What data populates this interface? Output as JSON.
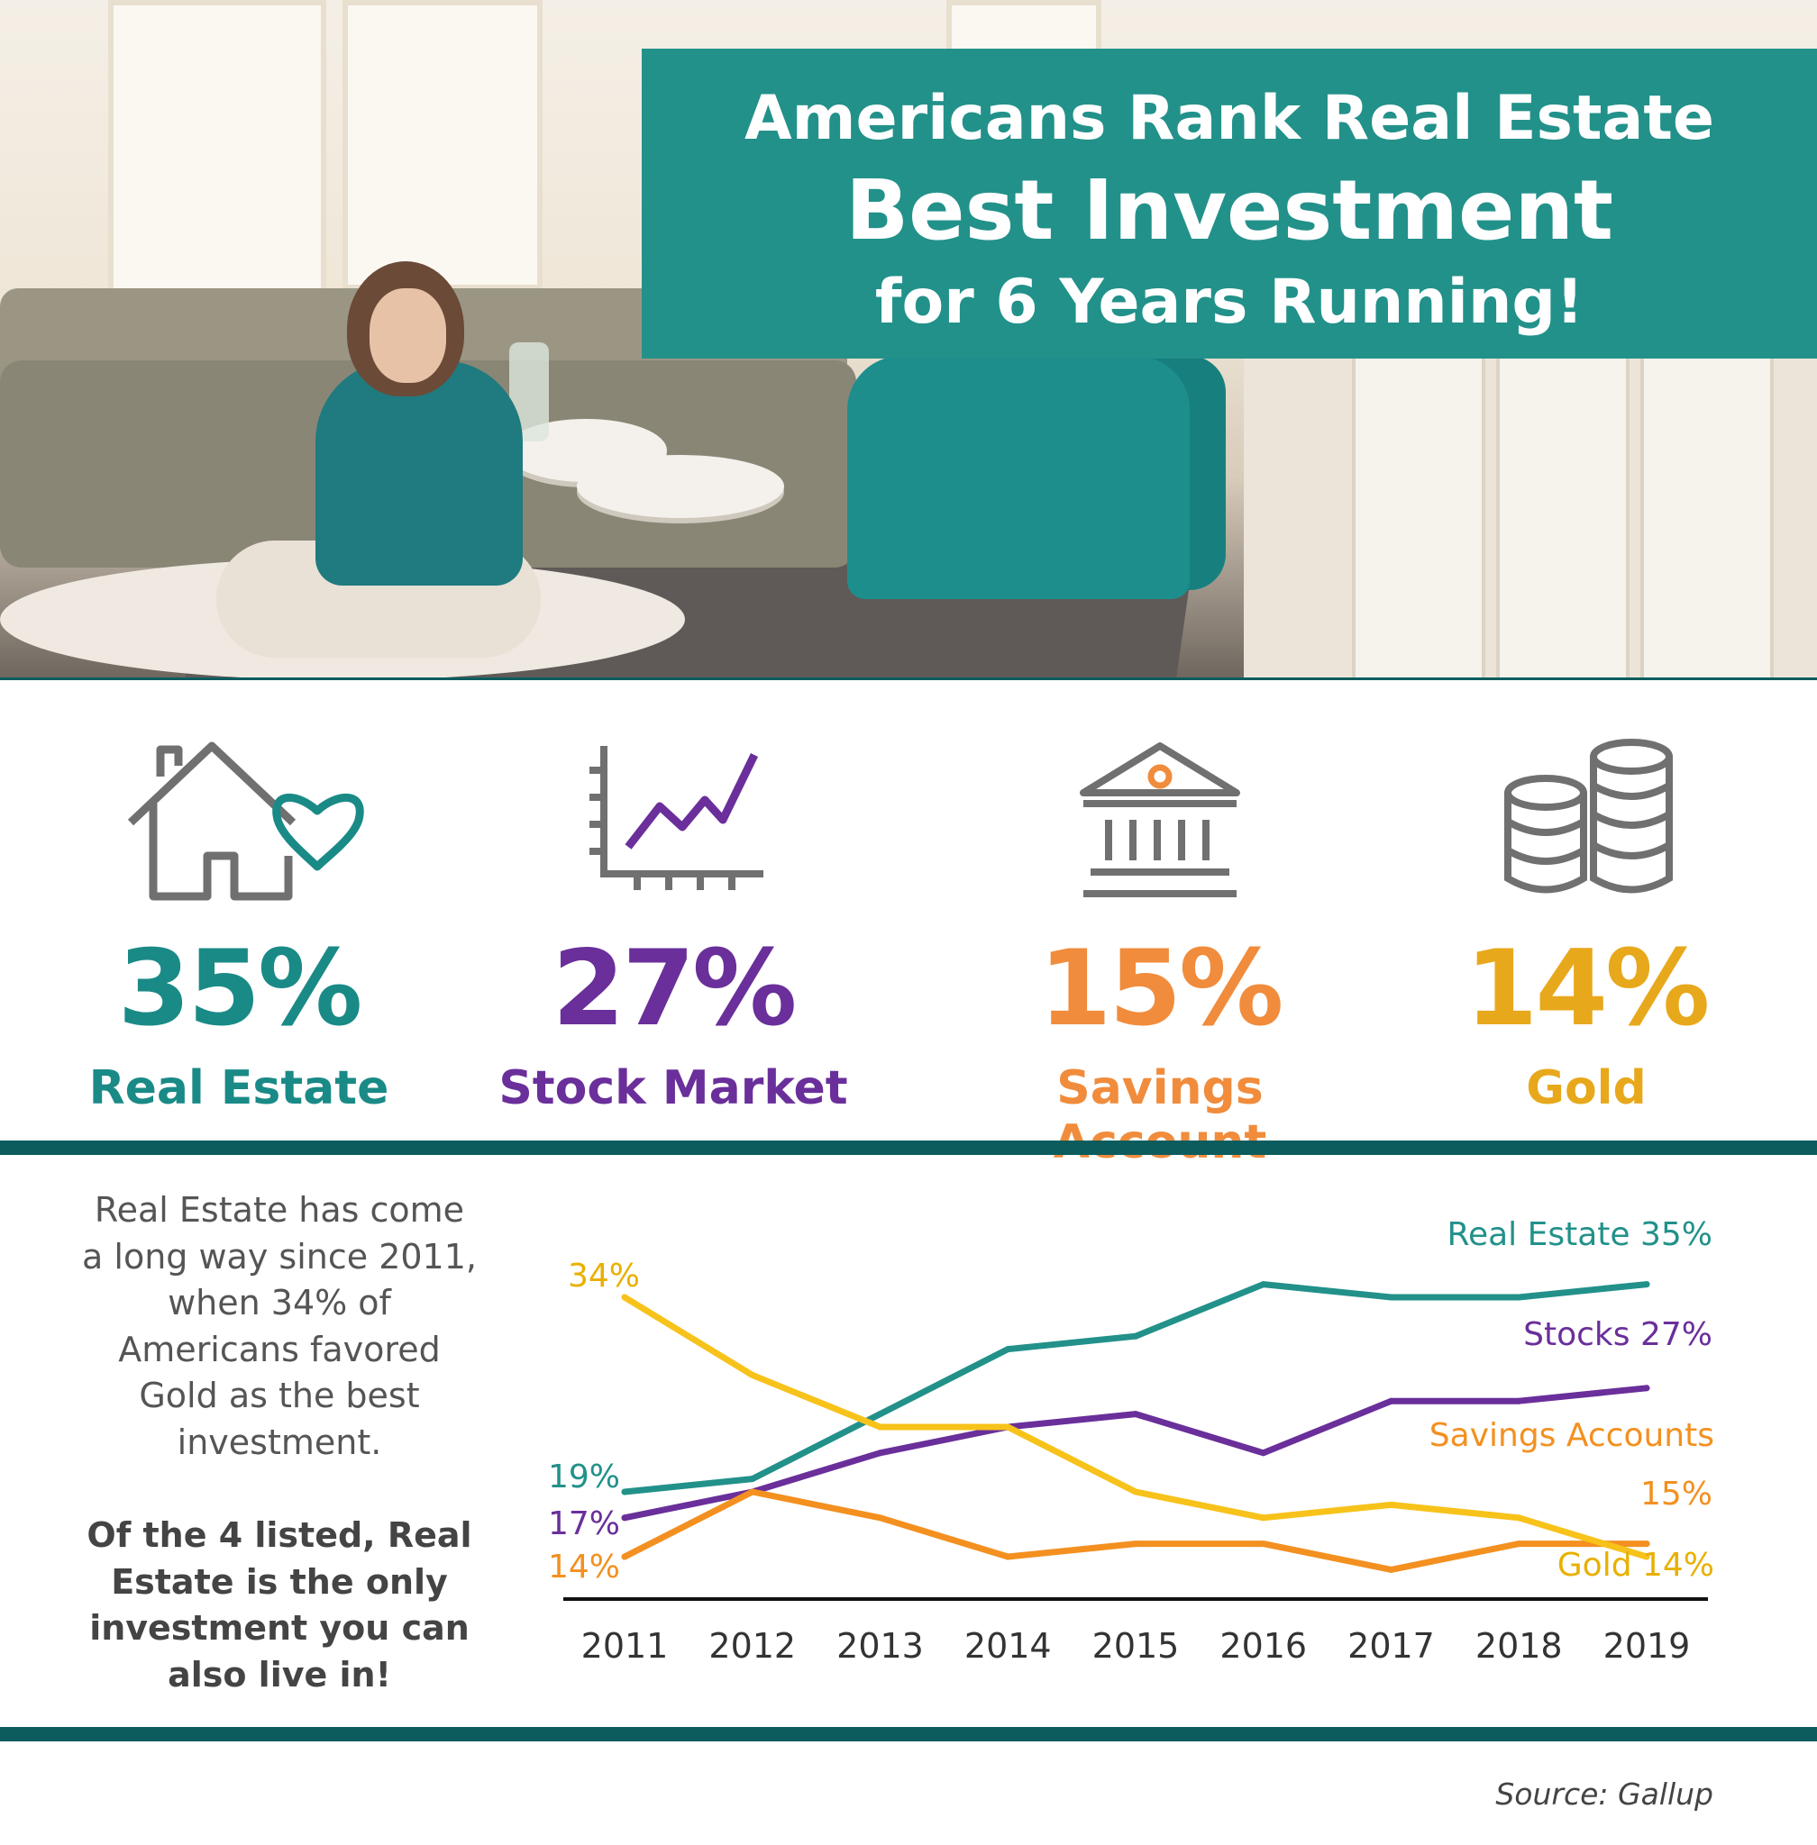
{
  "header": {
    "title_line1": "Americans Rank Real Estate",
    "title_line2": "Best Investment",
    "title_line3": "for 6 Years Running!"
  },
  "stats": [
    {
      "percent": "35%",
      "label": "Real Estate",
      "color": "#1a8a87",
      "icon": "house-heart-icon"
    },
    {
      "percent": "27%",
      "label": "Stock Market",
      "color": "#6a2f9a",
      "icon": "stock-chart-icon"
    },
    {
      "percent": "15%",
      "label": "Savings Account",
      "color": "#f08c3c",
      "icon": "bank-icon"
    },
    {
      "percent": "14%",
      "label": "Gold",
      "color": "#e8a81c",
      "icon": "coins-icon"
    }
  ],
  "note": {
    "paragraph1": "Real Estate has come a long way since 2011, when 34% of Americans favored Gold as the best investment.",
    "paragraph2": "Of the 4 listed, Real Estate is the only investment you can also live in!"
  },
  "source": "Source: Gallup",
  "chart_data": {
    "type": "line",
    "x": [
      "2011",
      "2012",
      "2013",
      "2014",
      "2015",
      "2016",
      "2017",
      "2018",
      "2019"
    ],
    "ylim": [
      10,
      37
    ],
    "series": [
      {
        "name": "Real Estate",
        "end_label": "Real Estate 35%",
        "start_label": "19%",
        "color": "#22918a",
        "values": [
          19,
          20,
          25,
          30,
          31,
          35,
          34,
          34,
          35
        ]
      },
      {
        "name": "Stocks",
        "end_label": "Stocks 27%",
        "start_label": "17%",
        "color": "#6a2f9a",
        "values": [
          17,
          19,
          22,
          24,
          25,
          22,
          26,
          26,
          27
        ]
      },
      {
        "name": "Savings Accounts",
        "end_label_lines": [
          "Savings Accounts",
          "15%"
        ],
        "start_label": "14%",
        "color": "#f39020",
        "values": [
          14,
          19,
          17,
          14,
          15,
          15,
          13,
          15,
          15
        ]
      },
      {
        "name": "Gold",
        "end_label": "Gold 14%",
        "start_label": "34%",
        "color": "#f7c21a",
        "values": [
          34,
          28,
          24,
          24,
          19,
          17,
          18,
          17,
          14
        ]
      }
    ],
    "grid": false,
    "legend": "none"
  }
}
